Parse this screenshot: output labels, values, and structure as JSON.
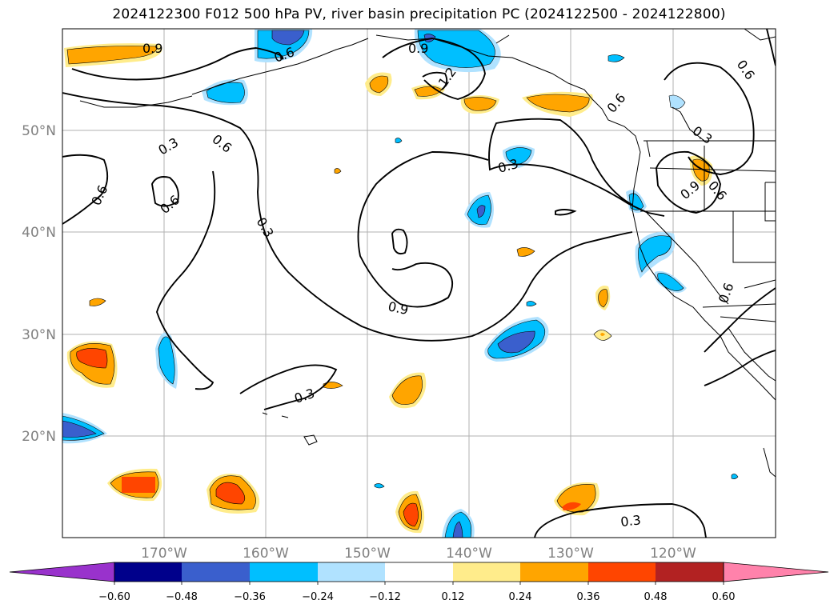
{
  "title": "2024122300 F012 500 hPa PV, river basin precipitation PC (2024122500 - 2024122800)",
  "map": {
    "lat_labels": [
      "50°N",
      "40°N",
      "30°N",
      "20°N"
    ],
    "lon_labels": [
      "170°W",
      "160°W",
      "150°W",
      "140°W",
      "130°W",
      "120°W"
    ],
    "contour_labels": [
      "0.9",
      "0.6",
      "0.9",
      "1.2",
      "0.6",
      "0.3",
      "0.6",
      "0.3",
      "0.6",
      "0.6",
      "0.3",
      "0.3",
      "0.6",
      "0.9",
      "0.6",
      "0.9",
      "0.6",
      "0.3",
      "0.3"
    ],
    "shading_colors": {
      "neg_strong": "#3a5fcd",
      "neg_mid": "#00bfff",
      "neg_weak": "#b0e2ff",
      "pos_weak": "#ffec8b",
      "pos_mid": "#ffa500",
      "pos_strong": "#ff4500"
    }
  },
  "colorbar": {
    "ticks": [
      "−0.60",
      "−0.48",
      "−0.36",
      "−0.24",
      "−0.12",
      "0.12",
      "0.24",
      "0.36",
      "0.48",
      "0.60"
    ],
    "colors": [
      "#9932cc",
      "#00008b",
      "#3a5fcd",
      "#00bfff",
      "#b0e2ff",
      "#ffffff",
      "#ffec8b",
      "#ffa500",
      "#ff4500",
      "#b22222",
      "#ff82ab"
    ]
  }
}
